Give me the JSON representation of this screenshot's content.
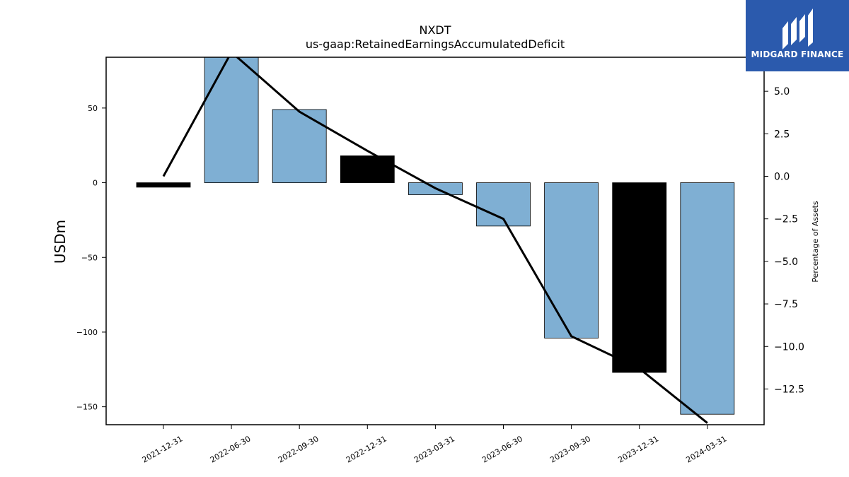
{
  "chart_data": {
    "type": "bar",
    "title": "NXDT",
    "subtitle": "us-gaap:RetainedEarningsAccumulatedDeficit",
    "ylabel": "USDm",
    "y2label": "Percentage of Assets",
    "categories": [
      "2021-12-31",
      "2022-06-30",
      "2022-09-30",
      "2022-12-31",
      "2023-03-31",
      "2023-06-30",
      "2023-09-30",
      "2023-12-31",
      "2024-03-31"
    ],
    "values": [
      -3,
      85,
      49,
      18,
      -8,
      -29,
      -104,
      -127,
      -155
    ],
    "bar_colors": [
      "#000000",
      "#7fafd3",
      "#7fafd3",
      "#000000",
      "#7fafd3",
      "#7fafd3",
      "#7fafd3",
      "#000000",
      "#7fafd3"
    ],
    "line_values": [
      0.0,
      7.3,
      3.8,
      1.5,
      -0.7,
      -2.5,
      -9.4,
      -11.3,
      -14.5
    ],
    "ylim": [
      -162,
      84
    ],
    "y2lim": [
      -14.6,
      7.0
    ],
    "yticks": [
      50,
      0,
      -50,
      -100,
      -150
    ],
    "y2ticks": [
      5.0,
      2.5,
      0.0,
      -2.5,
      -5.0,
      -7.5,
      -10.0,
      -12.5
    ],
    "colors": {
      "bar": "#7fafd3",
      "highlight": "#000000",
      "line": "#000000"
    }
  },
  "logo": {
    "text": "MIDGARD FINANCE",
    "color": "#2b5aad"
  }
}
